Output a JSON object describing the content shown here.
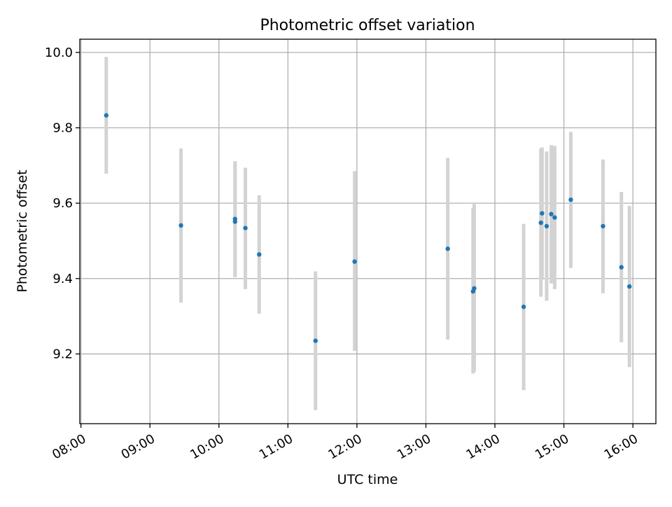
{
  "chart_data": {
    "type": "scatter",
    "title": "Photometric offset variation",
    "xlabel": "UTC time",
    "ylabel": "Photometric offset",
    "x_ticks": [
      "08:00",
      "09:00",
      "10:00",
      "11:00",
      "12:00",
      "13:00",
      "14:00",
      "15:00",
      "16:00"
    ],
    "y_ticks": [
      "9.2",
      "9.4",
      "9.6",
      "9.8",
      "10.0"
    ],
    "xlim": [
      "07:59",
      "16:20"
    ],
    "ylim": [
      9.015,
      10.035
    ],
    "grid": true,
    "legend": "none",
    "marker_color": "#1f77b4",
    "errorbar_color": "#d3d3d3",
    "points": [
      {
        "x": "08:22",
        "y": 9.833,
        "yerr_low": 9.678,
        "yerr_high": 9.988
      },
      {
        "x": "09:27",
        "y": 9.541,
        "yerr_low": 9.336,
        "yerr_high": 9.745
      },
      {
        "x": "10:14",
        "y": 9.558,
        "yerr_low": 9.404,
        "yerr_high": 9.711
      },
      {
        "x": "10:14",
        "y": 9.551,
        "yerr_low": 9.404,
        "yerr_high": 9.711
      },
      {
        "x": "10:23",
        "y": 9.534,
        "yerr_low": 9.372,
        "yerr_high": 9.694
      },
      {
        "x": "10:35",
        "y": 9.464,
        "yerr_low": 9.307,
        "yerr_high": 9.621
      },
      {
        "x": "11:24",
        "y": 9.235,
        "yerr_low": 9.051,
        "yerr_high": 9.419
      },
      {
        "x": "11:58",
        "y": 9.445,
        "yerr_low": 9.208,
        "yerr_high": 9.685
      },
      {
        "x": "13:19",
        "y": 9.479,
        "yerr_low": 9.238,
        "yerr_high": 9.72
      },
      {
        "x": "13:41",
        "y": 9.366,
        "yerr_low": 9.148,
        "yerr_high": 9.588
      },
      {
        "x": "13:42",
        "y": 9.374,
        "yerr_low": 9.153,
        "yerr_high": 9.598
      },
      {
        "x": "14:25",
        "y": 9.325,
        "yerr_low": 9.104,
        "yerr_high": 9.545
      },
      {
        "x": "14:40",
        "y": 9.548,
        "yerr_low": 9.352,
        "yerr_high": 9.745
      },
      {
        "x": "14:41",
        "y": 9.573,
        "yerr_low": 9.397,
        "yerr_high": 9.748
      },
      {
        "x": "14:45",
        "y": 9.539,
        "yerr_low": 9.341,
        "yerr_high": 9.737
      },
      {
        "x": "14:49",
        "y": 9.571,
        "yerr_low": 9.387,
        "yerr_high": 9.754
      },
      {
        "x": "14:52",
        "y": 9.562,
        "yerr_low": 9.372,
        "yerr_high": 9.752
      },
      {
        "x": "15:06",
        "y": 9.609,
        "yerr_low": 9.428,
        "yerr_high": 9.789
      },
      {
        "x": "15:34",
        "y": 9.539,
        "yerr_low": 9.361,
        "yerr_high": 9.716
      },
      {
        "x": "15:50",
        "y": 9.43,
        "yerr_low": 9.231,
        "yerr_high": 9.63
      },
      {
        "x": "15:57",
        "y": 9.379,
        "yerr_low": 9.165,
        "yerr_high": 9.593
      }
    ]
  }
}
